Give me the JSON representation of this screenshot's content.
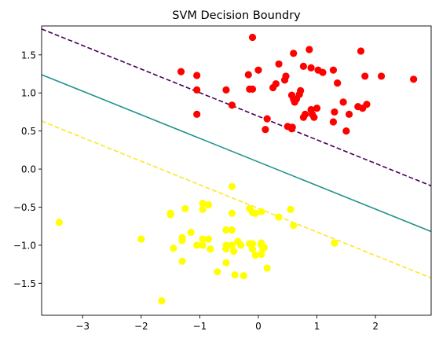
{
  "chart_data": {
    "type": "scatter",
    "title": "SVM Decision Boundry",
    "xlabel": "",
    "ylabel": "",
    "xlim": [
      -3.7,
      2.95
    ],
    "ylim": [
      -1.92,
      1.88
    ],
    "x_ticks": [
      -3,
      -2,
      -1,
      0,
      1,
      2
    ],
    "y_ticks": [
      -1.5,
      -1.0,
      -0.5,
      0.0,
      0.5,
      1.0,
      1.5
    ],
    "x_tick_labels": [
      "−3",
      "−2",
      "−1",
      "0",
      "1",
      "2"
    ],
    "y_tick_labels": [
      "−1.5",
      "−1.0",
      "−0.5",
      "0.0",
      "0.5",
      "1.0",
      "1.5"
    ],
    "grid": false,
    "colors": {
      "class_red": "#ff0000",
      "class_yellow": "#ffff00",
      "boundary": "#21918c",
      "margin_upper": "#440154",
      "margin_lower": "#fde725"
    },
    "series": [
      {
        "color": "#ff0000",
        "points": [
          [
            -0.1,
            1.73
          ],
          [
            0.87,
            1.57
          ],
          [
            1.75,
            1.55
          ],
          [
            0.6,
            1.52
          ],
          [
            0.35,
            1.38
          ],
          [
            0.77,
            1.35
          ],
          [
            0.9,
            1.33
          ],
          [
            -1.32,
            1.28
          ],
          [
            0.0,
            1.3
          ],
          [
            1.02,
            1.3
          ],
          [
            1.1,
            1.27
          ],
          [
            1.28,
            1.3
          ],
          [
            -1.05,
            1.23
          ],
          [
            0.47,
            1.22
          ],
          [
            -0.17,
            1.24
          ],
          [
            1.82,
            1.22
          ],
          [
            2.1,
            1.22
          ],
          [
            2.65,
            1.18
          ],
          [
            0.45,
            1.17
          ],
          [
            0.3,
            1.12
          ],
          [
            1.35,
            1.13
          ],
          [
            0.25,
            1.07
          ],
          [
            -0.15,
            1.05
          ],
          [
            -0.1,
            1.05
          ],
          [
            -0.55,
            1.04
          ],
          [
            -1.05,
            1.04
          ],
          [
            0.72,
            1.03
          ],
          [
            0.57,
            0.97
          ],
          [
            0.65,
            0.92
          ],
          [
            0.7,
            0.98
          ],
          [
            0.6,
            0.92
          ],
          [
            0.62,
            0.88
          ],
          [
            1.45,
            0.88
          ],
          [
            -0.45,
            0.84
          ],
          [
            1.7,
            0.82
          ],
          [
            1.85,
            0.85
          ],
          [
            1.78,
            0.8
          ],
          [
            0.9,
            0.78
          ],
          [
            0.92,
            0.72
          ],
          [
            0.95,
            0.68
          ],
          [
            1.0,
            0.8
          ],
          [
            1.3,
            0.75
          ],
          [
            0.77,
            0.68
          ],
          [
            0.8,
            0.72
          ],
          [
            -1.05,
            0.72
          ],
          [
            1.55,
            0.72
          ],
          [
            0.15,
            0.66
          ],
          [
            1.28,
            0.62
          ],
          [
            0.5,
            0.56
          ],
          [
            0.57,
            0.53
          ],
          [
            0.58,
            0.55
          ],
          [
            0.12,
            0.52
          ],
          [
            1.5,
            0.5
          ]
        ]
      },
      {
        "color": "#ffff00",
        "points": [
          [
            -0.45,
            -0.23
          ],
          [
            -0.95,
            -0.45
          ],
          [
            -0.85,
            -0.47
          ],
          [
            -0.15,
            -0.52
          ],
          [
            -0.05,
            -0.58
          ],
          [
            0.05,
            -0.56
          ],
          [
            -0.95,
            -0.53
          ],
          [
            0.55,
            -0.53
          ],
          [
            -1.25,
            -0.52
          ],
          [
            -0.1,
            -0.57
          ],
          [
            -1.5,
            -0.58
          ],
          [
            -1.5,
            -0.6
          ],
          [
            -0.45,
            -0.58
          ],
          [
            0.35,
            -0.63
          ],
          [
            -3.4,
            -0.7
          ],
          [
            0.6,
            -0.74
          ],
          [
            -1.15,
            -0.83
          ],
          [
            -0.55,
            -0.8
          ],
          [
            -0.45,
            -0.8
          ],
          [
            -2.0,
            -0.92
          ],
          [
            -1.3,
            -0.9
          ],
          [
            -1.3,
            -0.94
          ],
          [
            -0.95,
            -0.92
          ],
          [
            -0.85,
            -0.92
          ],
          [
            -0.35,
            -0.95
          ],
          [
            -0.15,
            -0.98
          ],
          [
            -0.1,
            -0.98
          ],
          [
            0.05,
            -0.97
          ],
          [
            -0.3,
            -1.0
          ],
          [
            -0.55,
            -1.0
          ],
          [
            -0.45,
            -1.0
          ],
          [
            -1.45,
            -1.04
          ],
          [
            -0.95,
            -1.0
          ],
          [
            -1.05,
            -1.0
          ],
          [
            -0.55,
            -1.05
          ],
          [
            0.05,
            -1.0
          ],
          [
            0.1,
            -1.03
          ],
          [
            1.3,
            -0.97
          ],
          [
            0.08,
            -1.05
          ],
          [
            -0.82,
            -1.05
          ],
          [
            -0.42,
            -1.08
          ],
          [
            -0.1,
            -1.05
          ],
          [
            -0.05,
            -1.13
          ],
          [
            0.05,
            -1.12
          ],
          [
            -1.3,
            -1.21
          ],
          [
            -0.55,
            -1.23
          ],
          [
            0.15,
            -1.3
          ],
          [
            -0.7,
            -1.35
          ],
          [
            -0.4,
            -1.39
          ],
          [
            -0.25,
            -1.4
          ],
          [
            -1.65,
            -1.73
          ]
        ]
      }
    ],
    "lines": [
      {
        "style": "dashed",
        "color": "#440154",
        "x": [
          -3.7,
          2.95
        ],
        "y": [
          1.84,
          -0.22
        ]
      },
      {
        "style": "solid",
        "color": "#21918c",
        "x": [
          -3.7,
          2.95
        ],
        "y": [
          1.24,
          -0.82
        ]
      },
      {
        "style": "dashed",
        "color": "#fde725",
        "x": [
          -3.7,
          2.95
        ],
        "y": [
          0.63,
          -1.43
        ]
      }
    ]
  }
}
